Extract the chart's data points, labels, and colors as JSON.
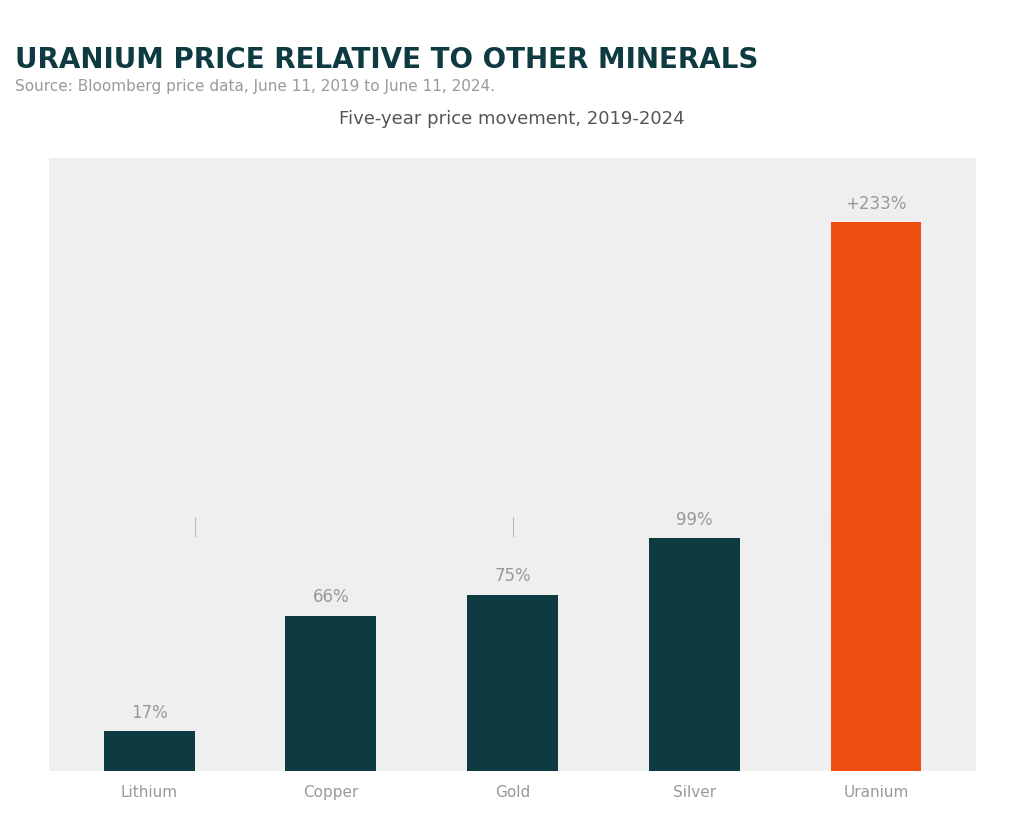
{
  "title": "URANIUM PRICE RELATIVE TO OTHER MINERALS",
  "subtitle": "Five-year price movement, 2019-2024",
  "source": "Source: Bloomberg price data, June 11, 2019 to June 11, 2024.",
  "categories": [
    "Lithium",
    "Copper",
    "Gold",
    "Silver",
    "Uranium"
  ],
  "values": [
    17,
    66,
    75,
    99,
    233
  ],
  "labels": [
    "17%",
    "66%",
    "75%",
    "99%",
    "+233%"
  ],
  "bar_colors": [
    "#0d3b41",
    "#0d3b41",
    "#0d3b41",
    "#0d3b41",
    "#f04e10"
  ],
  "accent_color": "#f04e10",
  "title_color": "#0d3b41",
  "source_color": "#999999",
  "label_color": "#999999",
  "subtitle_color": "#555555",
  "bg_color": "#efefef",
  "outer_bg": "#ffffff",
  "ylim": [
    0,
    260
  ],
  "title_fontsize": 20,
  "source_fontsize": 11,
  "subtitle_fontsize": 13,
  "label_fontsize": 12,
  "tick_label_fontsize": 11
}
